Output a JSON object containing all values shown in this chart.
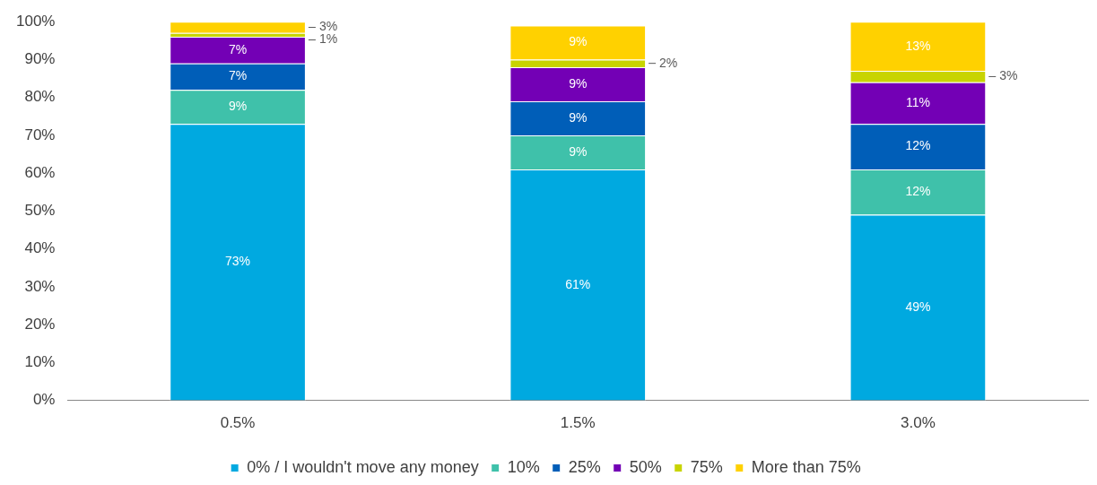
{
  "chart_data": {
    "type": "bar",
    "stacked": true,
    "categories": [
      "0.5%",
      "1.5%",
      "3.0%"
    ],
    "series": [
      {
        "name": "0% / I wouldn't move any money",
        "color": "#00a9e0",
        "values": [
          73,
          61,
          49
        ],
        "value_labels": [
          "73%",
          "61%",
          "49%"
        ]
      },
      {
        "name": "10%",
        "color": "#3fc1aa",
        "values": [
          9,
          9,
          12
        ],
        "value_labels": [
          "9%",
          "9%",
          "12%"
        ]
      },
      {
        "name": "25%",
        "color": "#005eb8",
        "values": [
          7,
          9,
          12
        ],
        "value_labels": [
          "7%",
          "9%",
          "12%"
        ]
      },
      {
        "name": "50%",
        "color": "#7300b5",
        "values": [
          7,
          9,
          11
        ],
        "value_labels": [
          "7%",
          "9%",
          "11%"
        ]
      },
      {
        "name": "75%",
        "color": "#c8d400",
        "values": [
          1,
          2,
          3
        ],
        "value_labels": [
          "1%",
          "2%",
          "3%"
        ]
      },
      {
        "name": "More than 75%",
        "color": "#ffd100",
        "values": [
          3,
          9,
          13
        ],
        "value_labels": [
          "3%",
          "9%",
          "13%"
        ]
      }
    ],
    "ylim": [
      0,
      100
    ],
    "yticks": [
      {
        "value": 0,
        "label": "0%"
      },
      {
        "value": 10,
        "label": "10%"
      },
      {
        "value": 20,
        "label": "20%"
      },
      {
        "value": 30,
        "label": "30%"
      },
      {
        "value": 40,
        "label": "40%"
      },
      {
        "value": 50,
        "label": "50%"
      },
      {
        "value": 60,
        "label": "60%"
      },
      {
        "value": 70,
        "label": "70%"
      },
      {
        "value": 80,
        "label": "80%"
      },
      {
        "value": 90,
        "label": "90%"
      },
      {
        "value": 100,
        "label": "100%"
      }
    ],
    "grid": false,
    "legend": "bottom"
  }
}
